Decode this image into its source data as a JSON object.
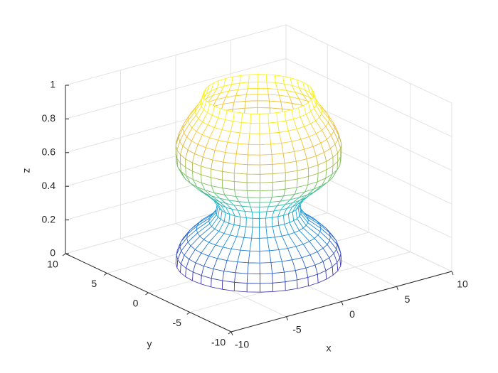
{
  "chart_data": {
    "type": "mesh3d",
    "xlabel": "x",
    "ylabel": "y",
    "zlabel": "z",
    "xlim": [
      -10,
      10
    ],
    "ylim": [
      -10,
      10
    ],
    "zlim": [
      0,
      1
    ],
    "xticks": [
      -10,
      -5,
      0,
      5,
      10
    ],
    "yticks": [
      -10,
      -5,
      0,
      5,
      10
    ],
    "zticks": [
      0,
      0.2,
      0.4,
      0.6,
      0.8,
      1
    ],
    "grid": true,
    "surface": {
      "z": [
        0,
        0.05,
        0.1,
        0.15,
        0.2,
        0.25,
        0.3,
        0.35,
        0.4,
        0.45,
        0.5,
        0.55,
        0.6,
        0.65,
        0.7,
        0.75,
        0.8,
        0.85,
        0.9,
        0.95,
        1
      ],
      "r": [
        6.0,
        5.95,
        5.7,
        5.2,
        4.5,
        3.6,
        3.1,
        3.0,
        3.4,
        4.1,
        4.9,
        5.6,
        5.95,
        6.0,
        6.0,
        5.8,
        5.5,
        5.1,
        4.6,
        4.2,
        4.0
      ]
    }
  }
}
